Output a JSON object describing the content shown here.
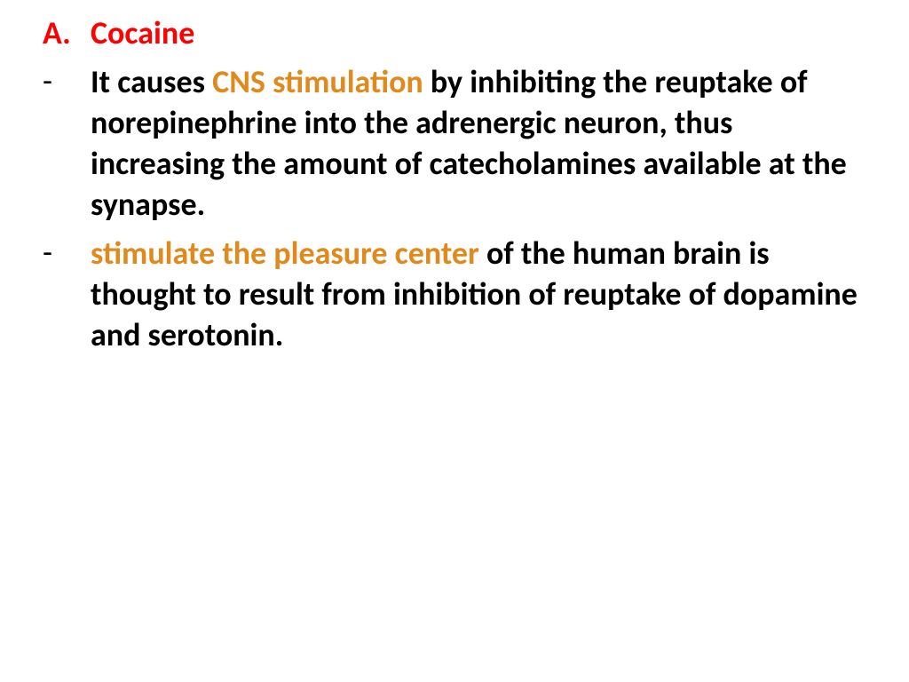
{
  "colors": {
    "title_red": "#ff0000",
    "highlight_orange": "#e08a1e",
    "body_black": "#000000",
    "background": "#ffffff"
  },
  "typography": {
    "font_family": "Calibri, 'Segoe UI', Arial, sans-serif",
    "title_fontsize_pt": 27,
    "body_fontsize_pt": 27,
    "title_weight": "700",
    "body_weight": "700",
    "line_height": 1.28
  },
  "heading": {
    "marker": "A.",
    "text": "Cocaine"
  },
  "bullets": [
    {
      "marker": "-",
      "segments": [
        {
          "text": "It causes ",
          "color_key": "body_black"
        },
        {
          "text": "CNS stimulation ",
          "color_key": "highlight_orange"
        },
        {
          "text": "by inhibiting the reuptake of  norepinephrine into the adrenergic neuron, thus increasing the amount of catecholamines available at the synapse.",
          "color_key": "body_black"
        }
      ]
    },
    {
      "marker": "-",
      "segments": [
        {
          "text": "stimulate the pleasure center ",
          "color_key": "highlight_orange"
        },
        {
          "text": "of the human brain is thought to result from inhibition of reuptake of dopamine and serotonin.",
          "color_key": "body_black"
        }
      ]
    }
  ]
}
